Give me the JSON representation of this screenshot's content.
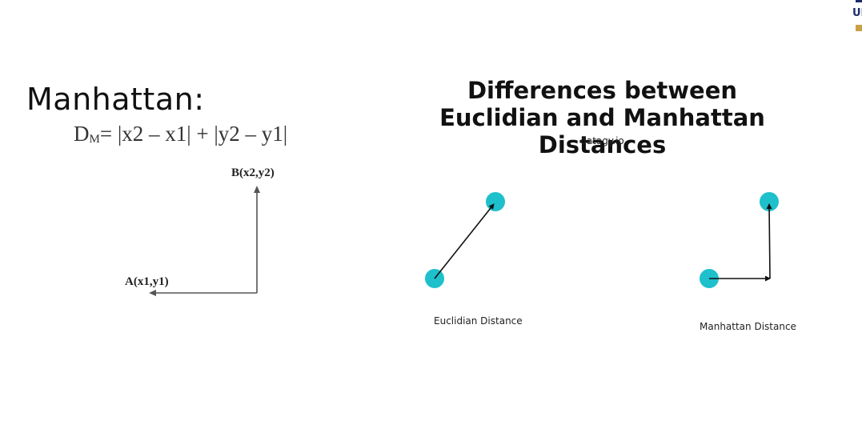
{
  "left": {
    "title": "Manhattan:",
    "formula": {
      "lhs_main": "D",
      "lhs_sub": "M",
      "rhs": "= |x2 – x1| + |y2 – y1|"
    },
    "point_b": "B(x2,y2)",
    "point_a": "A(x1,y1)"
  },
  "right": {
    "title_line1": "Differences between",
    "title_line2": "Euclidian and Manhattan Distances",
    "source": "datagy.io",
    "euclidian_caption": "Euclidian Distance",
    "manhattan_caption": "Manhattan Distance"
  },
  "corner": {
    "text": "UI"
  },
  "colors": {
    "dot": "#1ec0cc",
    "line": "#111111",
    "left_line": "#555555",
    "accent_navy": "#1b2a6b",
    "accent_gold": "#c9a04a"
  }
}
